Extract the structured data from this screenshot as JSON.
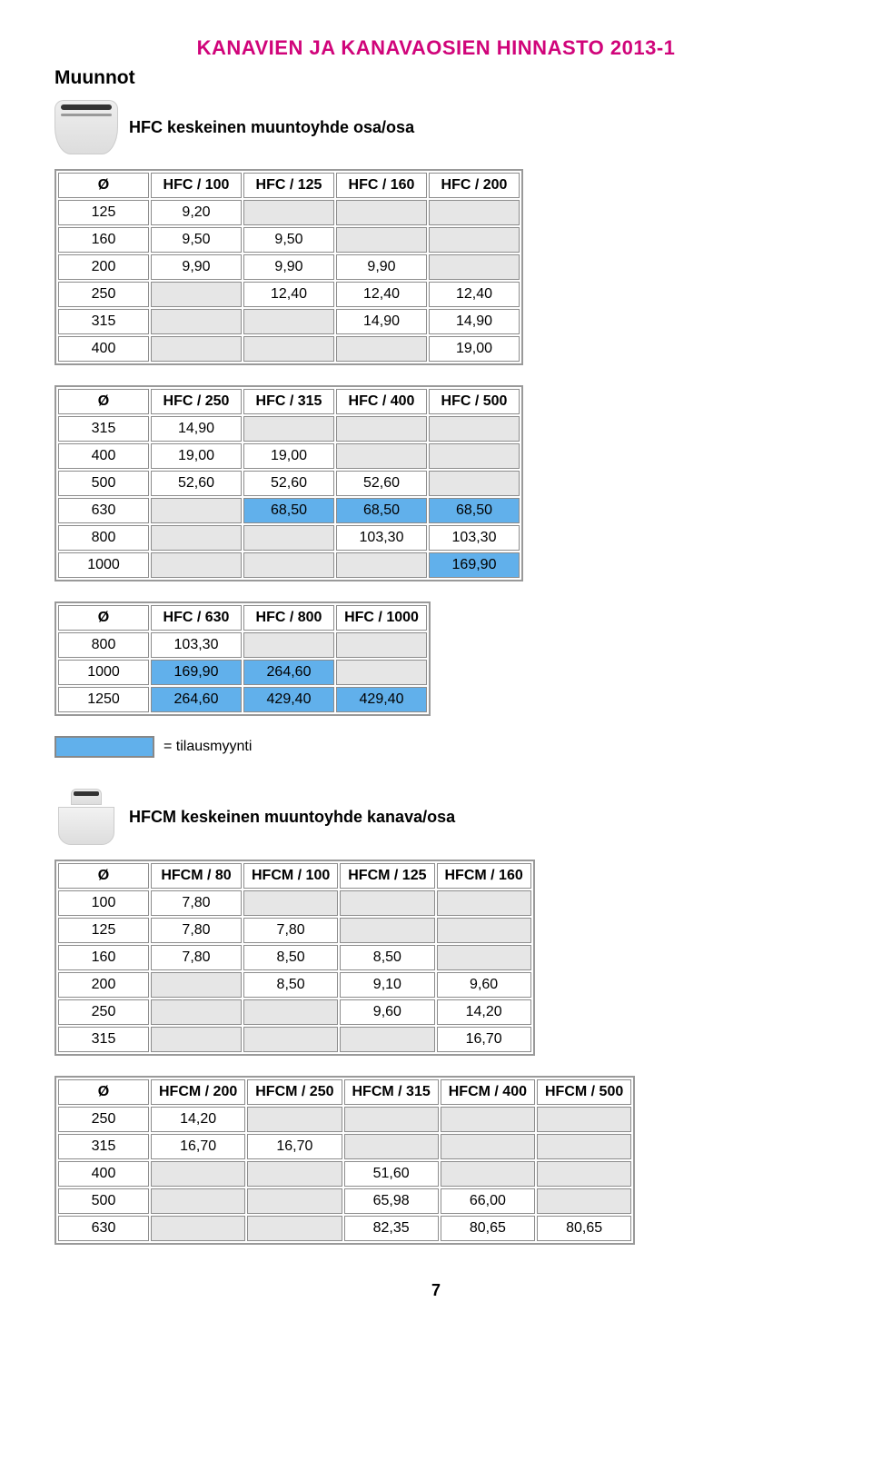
{
  "page_title": "KANAVIEN JA KANAVAOSIEN HINNASTO 2013-1",
  "section_title": "Muunnot",
  "sub1_title": "HFC keskeinen muuntoyhde osa/osa",
  "sub2_title": "HFCM keskeinen muuntoyhde kanava/osa",
  "legend_text": "= tilausmyynti",
  "page_number": "7",
  "hl_color": "#61b0eb",
  "table1": {
    "headers": [
      "Ø",
      "HFC / 100",
      "HFC / 125",
      "HFC / 160",
      "HFC / 200"
    ],
    "rows": [
      {
        "d": "125",
        "c": [
          "9,20",
          "",
          "",
          ""
        ]
      },
      {
        "d": "160",
        "c": [
          "9,50",
          "9,50",
          "",
          ""
        ]
      },
      {
        "d": "200",
        "c": [
          "9,90",
          "9,90",
          "9,90",
          ""
        ]
      },
      {
        "d": "250",
        "c": [
          "",
          "12,40",
          "12,40",
          "12,40"
        ]
      },
      {
        "d": "315",
        "c": [
          "",
          "",
          "14,90",
          "14,90"
        ]
      },
      {
        "d": "400",
        "c": [
          "",
          "",
          "",
          "19,00"
        ]
      }
    ]
  },
  "table2": {
    "headers": [
      "Ø",
      "HFC / 250",
      "HFC / 315",
      "HFC / 400",
      "HFC / 500"
    ],
    "rows": [
      [
        "315",
        "14,90",
        "",
        "",
        ""
      ],
      [
        "400",
        "19,00",
        "19,00",
        "",
        ""
      ],
      [
        "500",
        "52,60",
        "52,60",
        "52,60",
        ""
      ],
      [
        "630",
        "",
        "68,50",
        "68,50",
        "68,50"
      ],
      [
        "800",
        "",
        "",
        "103,30",
        "103,30"
      ],
      [
        "1000",
        "",
        "",
        "",
        "169,90"
      ]
    ],
    "hl": [
      [
        3,
        2
      ],
      [
        3,
        3
      ],
      [
        3,
        4
      ],
      [
        5,
        4
      ]
    ]
  },
  "table3": {
    "headers": [
      "Ø",
      "HFC / 630",
      "HFC / 800",
      "HFC / 1000"
    ],
    "rows": [
      [
        "800",
        "103,30",
        "",
        ""
      ],
      [
        "1000",
        "169,90",
        "264,60",
        ""
      ],
      [
        "1250",
        "264,60",
        "429,40",
        "429,40"
      ]
    ],
    "hl": [
      [
        1,
        1
      ],
      [
        1,
        2
      ],
      [
        2,
        1
      ],
      [
        2,
        2
      ],
      [
        2,
        3
      ]
    ]
  },
  "table4": {
    "headers": [
      "Ø",
      "HFCM / 80",
      "HFCM / 100",
      "HFCM / 125",
      "HFCM / 160"
    ],
    "rows": [
      [
        "100",
        "7,80",
        "",
        "",
        ""
      ],
      [
        "125",
        "7,80",
        "7,80",
        "",
        ""
      ],
      [
        "160",
        "7,80",
        "8,50",
        "8,50",
        ""
      ],
      [
        "200",
        "",
        "8,50",
        "9,10",
        "9,60"
      ],
      [
        "250",
        "",
        "",
        "9,60",
        "14,20"
      ],
      [
        "315",
        "",
        "",
        "",
        "16,70"
      ]
    ]
  },
  "table5": {
    "headers": [
      "Ø",
      "HFCM / 200",
      "HFCM / 250",
      "HFCM / 315",
      "HFCM / 400",
      "HFCM / 500"
    ],
    "rows": [
      [
        "250",
        "14,20",
        "",
        "",
        "",
        ""
      ],
      [
        "315",
        "16,70",
        "16,70",
        "",
        "",
        ""
      ],
      [
        "400",
        "",
        "",
        "51,60",
        "",
        ""
      ],
      [
        "500",
        "",
        "",
        "65,98",
        "66,00",
        ""
      ],
      [
        "630",
        "",
        "",
        "82,35",
        "80,65",
        "80,65"
      ]
    ]
  }
}
